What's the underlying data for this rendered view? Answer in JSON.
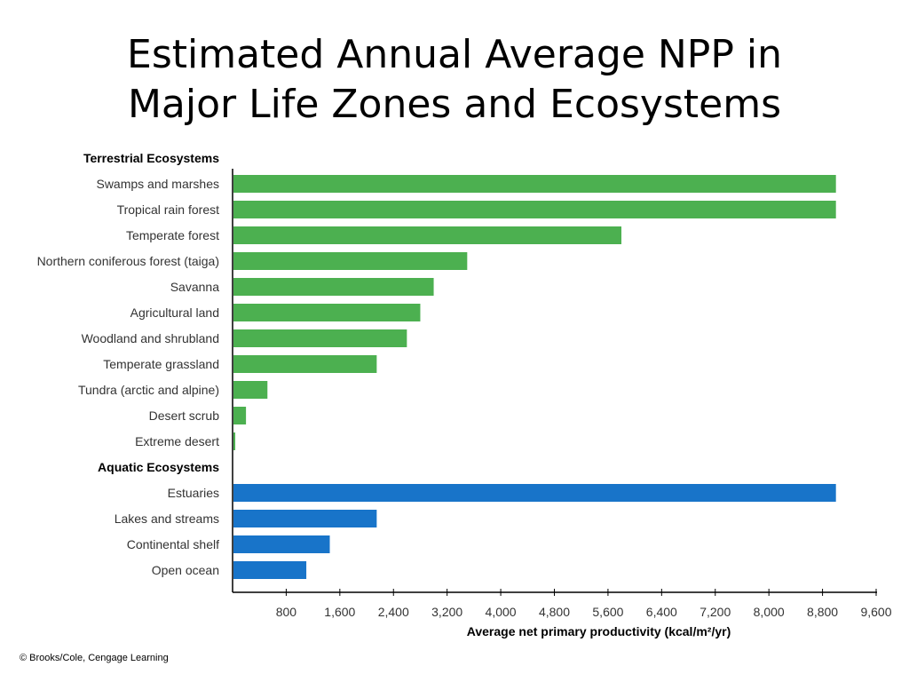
{
  "title_line1": "Estimated Annual Average NPP in",
  "title_line2": "Major Life Zones and Ecosystems",
  "credit": "© Brooks/Cole, Cengage Learning",
  "chart_data": {
    "type": "bar",
    "orientation": "horizontal",
    "xlabel": "Average net primary productivity (kcal/m²/yr)",
    "xlim": [
      0,
      9600
    ],
    "xticks": [
      "800",
      "1,600",
      "2,400",
      "3,200",
      "4,000",
      "4,800",
      "5,600",
      "6,400",
      "7,200",
      "8,000",
      "8,800",
      "9,600"
    ],
    "grid": false,
    "groups": [
      {
        "name": "Terrestrial Ecosystems",
        "color": "#4cb050",
        "categories": [
          "Swamps and marshes",
          "Tropical rain forest",
          "Temperate forest",
          "Northern coniferous forest (taiga)",
          "Savanna",
          "Agricultural land",
          "Woodland and shrubland",
          "Temperate grassland",
          "Tundra (arctic and alpine)",
          "Desert scrub",
          "Extreme desert"
        ],
        "values": [
          9000,
          9000,
          5800,
          3500,
          3000,
          2800,
          2600,
          2150,
          520,
          200,
          40
        ]
      },
      {
        "name": "Aquatic Ecosystems",
        "color": "#1874c9",
        "categories": [
          "Estuaries",
          "Lakes and streams",
          "Continental shelf",
          "Open ocean"
        ],
        "values": [
          9000,
          2150,
          1450,
          1100
        ]
      }
    ]
  }
}
